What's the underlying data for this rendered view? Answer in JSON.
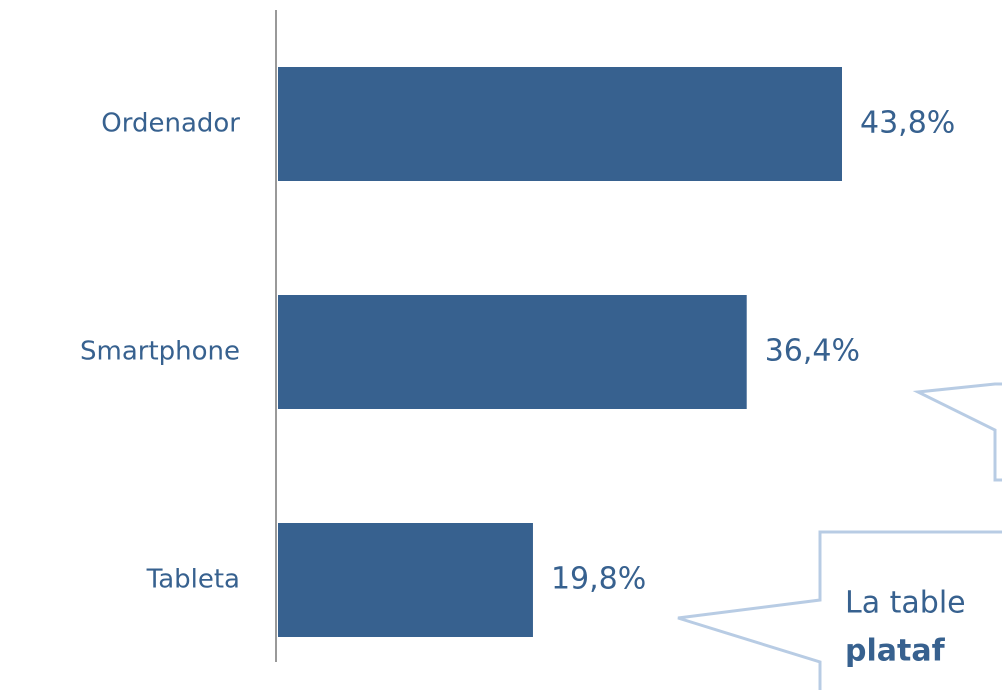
{
  "chart_data": {
    "type": "bar",
    "orientation": "horizontal",
    "categories": [
      "Ordenador",
      "Smartphone",
      "Tableta"
    ],
    "values": [
      43.8,
      36.4,
      19.8
    ],
    "value_labels": [
      "43,8%",
      "36,4%",
      "19,8%"
    ],
    "color": "#37618f",
    "annotations": [
      "La table",
      "plataf"
    ]
  }
}
